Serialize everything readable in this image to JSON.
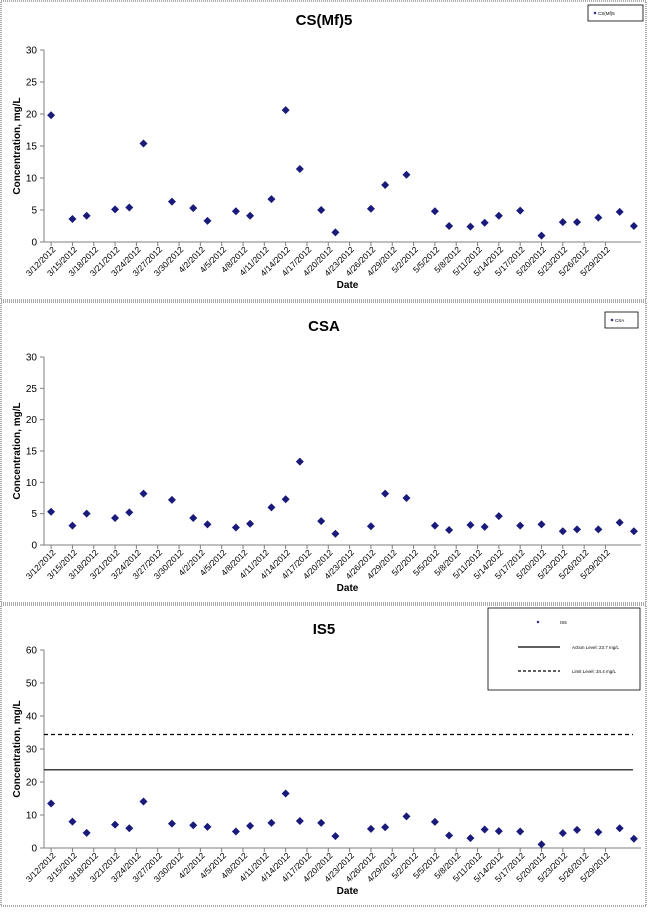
{
  "colors": {
    "marker": "#1a1a7a",
    "axis": "#7f7f7f",
    "frame": "#555555"
  },
  "chart_data": [
    {
      "type": "scatter",
      "title": "CS(Mf)5",
      "xlabel": "Date",
      "ylabel": "Concentration, mg/L",
      "ylim": [
        0,
        30
      ],
      "yticks": [
        0,
        5,
        10,
        15,
        20,
        25,
        30
      ],
      "xticks": [
        "3/12/2012",
        "3/15/2012",
        "3/18/2012",
        "3/21/2012",
        "3/24/2012",
        "3/27/2012",
        "3/30/2012",
        "4/2/2012",
        "4/5/2012",
        "4/8/2012",
        "4/11/2012",
        "4/14/2012",
        "4/17/2012",
        "4/20/2012",
        "4/23/2012",
        "4/26/2012",
        "4/29/2012",
        "5/2/2012",
        "5/5/2012",
        "5/8/2012",
        "5/11/2012",
        "5/14/2012",
        "5/17/2012",
        "5/20/2012",
        "5/23/2012",
        "5/26/2012",
        "5/29/2012"
      ],
      "legend": {
        "position": "top-right",
        "entries": [
          {
            "label": "CS(Mf)5",
            "style": "marker"
          }
        ]
      },
      "series": [
        {
          "name": "CS(Mf)5",
          "x": [
            "3/12/2012",
            "3/15/2012",
            "3/17/2012",
            "3/21/2012",
            "3/23/2012",
            "3/25/2012",
            "3/29/2012",
            "4/1/2012",
            "4/3/2012",
            "4/7/2012",
            "4/9/2012",
            "4/12/2012",
            "4/14/2012",
            "4/16/2012",
            "4/19/2012",
            "4/21/2012",
            "4/26/2012",
            "4/28/2012",
            "5/1/2012",
            "5/5/2012",
            "5/7/2012",
            "5/10/2012",
            "5/12/2012",
            "5/14/2012",
            "5/17/2012",
            "5/20/2012",
            "5/23/2012",
            "5/25/2012",
            "5/28/2012",
            "5/31/2012",
            "6/2/2012"
          ],
          "y": [
            19.8,
            3.6,
            4.1,
            5.1,
            5.4,
            15.4,
            6.3,
            5.3,
            3.3,
            4.8,
            4.1,
            6.7,
            20.6,
            11.4,
            5.0,
            1.5,
            5.2,
            8.9,
            10.5,
            4.8,
            2.5,
            2.4,
            3.0,
            4.1,
            4.9,
            1.0,
            3.1,
            3.1,
            3.8,
            4.7,
            2.5
          ]
        }
      ]
    },
    {
      "type": "scatter",
      "title": "CSA",
      "xlabel": "Date",
      "ylabel": "Concentration, mg/L",
      "ylim": [
        0,
        30
      ],
      "yticks": [
        0,
        5,
        10,
        15,
        20,
        25,
        30
      ],
      "xticks": [
        "3/12/2012",
        "3/15/2012",
        "3/18/2012",
        "3/21/2012",
        "3/24/2012",
        "3/27/2012",
        "3/30/2012",
        "4/2/2012",
        "4/5/2012",
        "4/8/2012",
        "4/11/2012",
        "4/14/2012",
        "4/17/2012",
        "4/20/2012",
        "4/23/2012",
        "4/26/2012",
        "4/29/2012",
        "5/2/2012",
        "5/5/2012",
        "5/8/2012",
        "5/11/2012",
        "5/14/2012",
        "5/17/2012",
        "5/20/2012",
        "5/23/2012",
        "5/26/2012",
        "5/29/2012"
      ],
      "legend": {
        "position": "top-right",
        "entries": [
          {
            "label": "CSA",
            "style": "marker"
          }
        ]
      },
      "series": [
        {
          "name": "CSA",
          "x": [
            "3/12/2012",
            "3/15/2012",
            "3/17/2012",
            "3/21/2012",
            "3/23/2012",
            "3/25/2012",
            "3/29/2012",
            "4/1/2012",
            "4/3/2012",
            "4/7/2012",
            "4/9/2012",
            "4/12/2012",
            "4/14/2012",
            "4/16/2012",
            "4/19/2012",
            "4/21/2012",
            "4/26/2012",
            "4/28/2012",
            "5/1/2012",
            "5/5/2012",
            "5/7/2012",
            "5/10/2012",
            "5/12/2012",
            "5/14/2012",
            "5/17/2012",
            "5/20/2012",
            "5/23/2012",
            "5/25/2012",
            "5/28/2012",
            "5/31/2012",
            "6/2/2012"
          ],
          "y": [
            5.3,
            3.1,
            5.0,
            4.3,
            5.2,
            8.2,
            7.2,
            4.3,
            3.3,
            2.8,
            3.4,
            6.0,
            7.3,
            13.3,
            3.8,
            1.8,
            3.0,
            8.2,
            7.5,
            3.1,
            2.4,
            3.2,
            2.9,
            4.6,
            3.1,
            3.3,
            2.2,
            2.5,
            2.5,
            3.6,
            2.2
          ]
        }
      ]
    },
    {
      "type": "scatter",
      "title": "IS5",
      "xlabel": "Date",
      "ylabel": "Concentration, mg/L",
      "ylim": [
        0,
        60
      ],
      "yticks": [
        0,
        10,
        20,
        30,
        40,
        50,
        60
      ],
      "xticks": [
        "3/12/2012",
        "3/15/2012",
        "3/18/2012",
        "3/21/2012",
        "3/24/2012",
        "3/27/2012",
        "3/30/2012",
        "4/2/2012",
        "4/5/2012",
        "4/8/2012",
        "4/11/2012",
        "4/14/2012",
        "4/17/2012",
        "4/20/2012",
        "4/23/2012",
        "4/26/2012",
        "4/29/2012",
        "5/2/2012",
        "5/5/2012",
        "5/8/2012",
        "5/11/2012",
        "5/14/2012",
        "5/17/2012",
        "5/20/2012",
        "5/23/2012",
        "5/26/2012",
        "5/29/2012"
      ],
      "legend": {
        "position": "top-right",
        "entries": [
          {
            "label": "IS5",
            "style": "marker"
          },
          {
            "label": "Action Level: 23.7 mg/L",
            "style": "solid"
          },
          {
            "label": "Limit Level: 34.4 mg/L",
            "style": "dashed"
          }
        ]
      },
      "reference_lines": [
        {
          "label": "Action Level: 23.7 mg/L",
          "value": 23.7,
          "style": "solid"
        },
        {
          "label": "Limit Level: 34.4 mg/L",
          "value": 34.4,
          "style": "dashed"
        }
      ],
      "series": [
        {
          "name": "IS5",
          "x": [
            "3/12/2012",
            "3/15/2012",
            "3/17/2012",
            "3/21/2012",
            "3/23/2012",
            "3/25/2012",
            "3/29/2012",
            "4/1/2012",
            "4/3/2012",
            "4/7/2012",
            "4/9/2012",
            "4/12/2012",
            "4/14/2012",
            "4/16/2012",
            "4/19/2012",
            "4/21/2012",
            "4/26/2012",
            "4/28/2012",
            "5/1/2012",
            "5/5/2012",
            "5/7/2012",
            "5/10/2012",
            "5/12/2012",
            "5/14/2012",
            "5/17/2012",
            "5/20/2012",
            "5/23/2012",
            "5/25/2012",
            "5/28/2012",
            "5/31/2012",
            "6/2/2012"
          ],
          "y": [
            13.5,
            8.0,
            4.6,
            7.1,
            6.0,
            14.1,
            7.4,
            6.9,
            6.4,
            5.0,
            6.7,
            7.6,
            16.5,
            8.2,
            7.6,
            3.6,
            5.8,
            6.3,
            9.6,
            7.9,
            3.8,
            3.0,
            5.6,
            5.1,
            5.0,
            1.1,
            4.5,
            5.5,
            4.8,
            6.0,
            2.8
          ]
        }
      ]
    }
  ]
}
